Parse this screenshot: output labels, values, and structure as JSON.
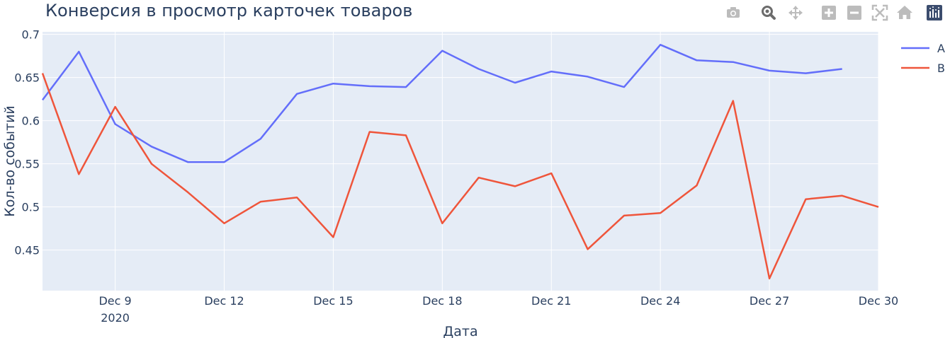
{
  "chart_data": {
    "type": "line",
    "title": "Конверсия в просмотр карточек товаров",
    "xlabel": "Дата",
    "ylabel": "Кол-во событий",
    "x": [
      "2020-12-07",
      "2020-12-08",
      "2020-12-09",
      "2020-12-10",
      "2020-12-11",
      "2020-12-12",
      "2020-12-13",
      "2020-12-14",
      "2020-12-15",
      "2020-12-16",
      "2020-12-17",
      "2020-12-18",
      "2020-12-19",
      "2020-12-20",
      "2020-12-21",
      "2020-12-22",
      "2020-12-23",
      "2020-12-24",
      "2020-12-25",
      "2020-12-26",
      "2020-12-27",
      "2020-12-28",
      "2020-12-29",
      "2020-12-30"
    ],
    "xlim": [
      "2020-12-07",
      "2020-12-30"
    ],
    "ylim": [
      0.403,
      0.703
    ],
    "xticks": [
      {
        "value": "2020-12-09",
        "label": "Dec 9",
        "sublabel": "2020"
      },
      {
        "value": "2020-12-12",
        "label": "Dec 12"
      },
      {
        "value": "2020-12-15",
        "label": "Dec 15"
      },
      {
        "value": "2020-12-18",
        "label": "Dec 18"
      },
      {
        "value": "2020-12-21",
        "label": "Dec 21"
      },
      {
        "value": "2020-12-24",
        "label": "Dec 24"
      },
      {
        "value": "2020-12-27",
        "label": "Dec 27"
      },
      {
        "value": "2020-12-30",
        "label": "Dec 30"
      }
    ],
    "yticks": [
      {
        "value": 0.45,
        "label": "0.45"
      },
      {
        "value": 0.5,
        "label": "0.5"
      },
      {
        "value": 0.55,
        "label": "0.55"
      },
      {
        "value": 0.6,
        "label": "0.6"
      },
      {
        "value": 0.65,
        "label": "0.65"
      },
      {
        "value": 0.7,
        "label": "0.7"
      }
    ],
    "grid": true,
    "legend_position": "top-right",
    "plot_bgcolor": "#e5ecf6",
    "series": [
      {
        "name": "A",
        "color": "#636efa",
        "values": [
          0.624,
          0.68,
          0.596,
          0.57,
          0.552,
          0.552,
          0.579,
          0.631,
          0.643,
          0.64,
          0.639,
          0.681,
          0.66,
          0.644,
          0.657,
          0.651,
          0.639,
          0.688,
          0.67,
          0.668,
          0.658,
          0.655,
          0.66,
          null
        ]
      },
      {
        "name": "B",
        "color": "#ef553b",
        "values": [
          0.655,
          0.538,
          0.616,
          0.55,
          0.517,
          0.481,
          0.506,
          0.511,
          0.465,
          0.587,
          0.583,
          0.481,
          0.534,
          0.524,
          0.539,
          0.451,
          0.49,
          0.493,
          0.525,
          0.623,
          0.417,
          0.509,
          0.513,
          0.5
        ]
      }
    ]
  },
  "modebar": {
    "buttons": [
      {
        "name": "camera-icon",
        "title": "Download plot as a png"
      },
      {
        "name": "zoom-icon",
        "title": "Zoom",
        "active": true
      },
      {
        "name": "pan-icon",
        "title": "Pan"
      },
      {
        "name": "zoom-in-icon",
        "title": "Zoom in"
      },
      {
        "name": "zoom-out-icon",
        "title": "Zoom out"
      },
      {
        "name": "autoscale-icon",
        "title": "Autoscale"
      },
      {
        "name": "home-icon",
        "title": "Reset axes"
      },
      {
        "name": "plotly-logo-icon",
        "title": "Produced with Plotly"
      }
    ]
  }
}
